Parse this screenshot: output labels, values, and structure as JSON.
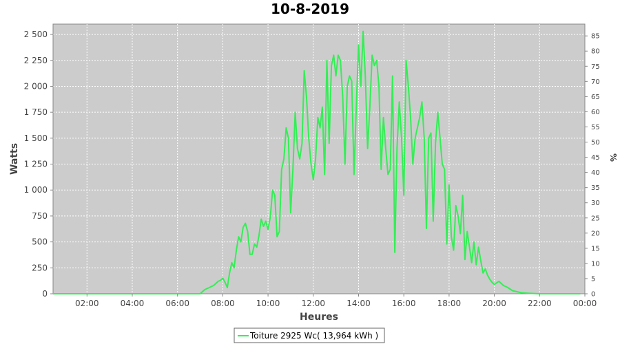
{
  "chart_data": {
    "type": "line",
    "title": "10-8-2019",
    "xlabel": "Heures",
    "ylabel": "Watts",
    "ylabel_right": "%",
    "xlim": [
      0.5,
      24
    ],
    "ylim": [
      0,
      2600
    ],
    "ylim_right": [
      0,
      88.9
    ],
    "x_ticks": [
      2,
      4,
      6,
      8,
      10,
      12,
      14,
      16,
      18,
      20,
      22,
      24
    ],
    "x_tick_labels": [
      "02:00",
      "04:00",
      "06:00",
      "08:00",
      "10:00",
      "12:00",
      "14:00",
      "16:00",
      "18:00",
      "20:00",
      "22:00",
      "00:00"
    ],
    "y_ticks": [
      0,
      250,
      500,
      750,
      1000,
      1250,
      1500,
      1750,
      2000,
      2250,
      2500
    ],
    "y_tick_labels": [
      "0",
      "250",
      "500",
      "750",
      "1 000",
      "1 250",
      "1 500",
      "1 750",
      "2 000",
      "2 250",
      "2 500"
    ],
    "y_right_ticks": [
      0,
      5,
      10,
      15,
      20,
      25,
      30,
      35,
      40,
      45,
      50,
      55,
      60,
      65,
      70,
      75,
      80,
      85
    ],
    "y_right_tick_labels": [
      "0",
      "5",
      "10",
      "15",
      "20",
      "25",
      "30",
      "35",
      "40",
      "45",
      "50",
      "55",
      "60",
      "65",
      "70",
      "75",
      "80",
      "85"
    ],
    "grid": true,
    "background": "#cccccc",
    "legend_position": "bottom",
    "series": [
      {
        "name": "Toiture 2925 Wc( 13,964 kWh )",
        "color": "#33ee55",
        "x": [
          0.5,
          7.0,
          7.2,
          7.4,
          7.6,
          7.8,
          7.9,
          8.0,
          8.1,
          8.2,
          8.3,
          8.4,
          8.5,
          8.6,
          8.7,
          8.8,
          8.9,
          9.0,
          9.1,
          9.2,
          9.3,
          9.4,
          9.5,
          9.6,
          9.7,
          9.8,
          9.9,
          10.0,
          10.1,
          10.2,
          10.3,
          10.4,
          10.5,
          10.6,
          10.7,
          10.8,
          10.9,
          11.0,
          11.1,
          11.2,
          11.3,
          11.4,
          11.5,
          11.6,
          11.7,
          11.8,
          11.9,
          12.0,
          12.1,
          12.2,
          12.3,
          12.4,
          12.5,
          12.6,
          12.7,
          12.8,
          12.9,
          13.0,
          13.1,
          13.2,
          13.3,
          13.4,
          13.5,
          13.6,
          13.7,
          13.8,
          13.9,
          14.0,
          14.1,
          14.2,
          14.3,
          14.4,
          14.5,
          14.6,
          14.7,
          14.8,
          14.9,
          15.0,
          15.1,
          15.2,
          15.3,
          15.4,
          15.5,
          15.6,
          15.7,
          15.8,
          15.9,
          16.0,
          16.1,
          16.2,
          16.3,
          16.4,
          16.5,
          16.6,
          16.7,
          16.8,
          16.9,
          17.0,
          17.1,
          17.2,
          17.3,
          17.4,
          17.5,
          17.6,
          17.7,
          17.8,
          17.9,
          18.0,
          18.1,
          18.2,
          18.3,
          18.4,
          18.5,
          18.6,
          18.7,
          18.8,
          18.9,
          19.0,
          19.1,
          19.2,
          19.3,
          19.4,
          19.5,
          19.6,
          19.7,
          19.8,
          19.9,
          20.0,
          20.2,
          20.4,
          20.6,
          20.8,
          21.0,
          21.2,
          21.5,
          22.0,
          23.0,
          23.8
        ],
        "values": [
          0,
          0,
          40,
          60,
          80,
          120,
          130,
          150,
          110,
          60,
          200,
          300,
          250,
          420,
          550,
          500,
          640,
          680,
          600,
          380,
          380,
          480,
          450,
          560,
          720,
          650,
          700,
          620,
          740,
          1000,
          950,
          550,
          600,
          1200,
          1300,
          1600,
          1500,
          780,
          1200,
          1750,
          1400,
          1300,
          1450,
          2150,
          1900,
          1500,
          1250,
          1100,
          1300,
          1700,
          1600,
          1800,
          1150,
          2250,
          1450,
          2200,
          2300,
          2100,
          2300,
          2250,
          1900,
          1250,
          2000,
          2100,
          2050,
          1150,
          1800,
          2400,
          2000,
          2530,
          2100,
          1400,
          1800,
          2300,
          2200,
          2250,
          2000,
          1200,
          1700,
          1400,
          1150,
          1200,
          2100,
          400,
          1400,
          1850,
          1500,
          950,
          2250,
          2000,
          1700,
          1250,
          1500,
          1600,
          1700,
          1850,
          1500,
          630,
          1500,
          1550,
          700,
          1450,
          1750,
          1500,
          1250,
          1200,
          480,
          1050,
          550,
          420,
          850,
          750,
          580,
          950,
          330,
          600,
          450,
          300,
          500,
          280,
          450,
          320,
          200,
          240,
          180,
          140,
          110,
          90,
          120,
          80,
          60,
          30,
          20,
          10,
          5,
          0,
          0,
          0
        ]
      }
    ]
  }
}
